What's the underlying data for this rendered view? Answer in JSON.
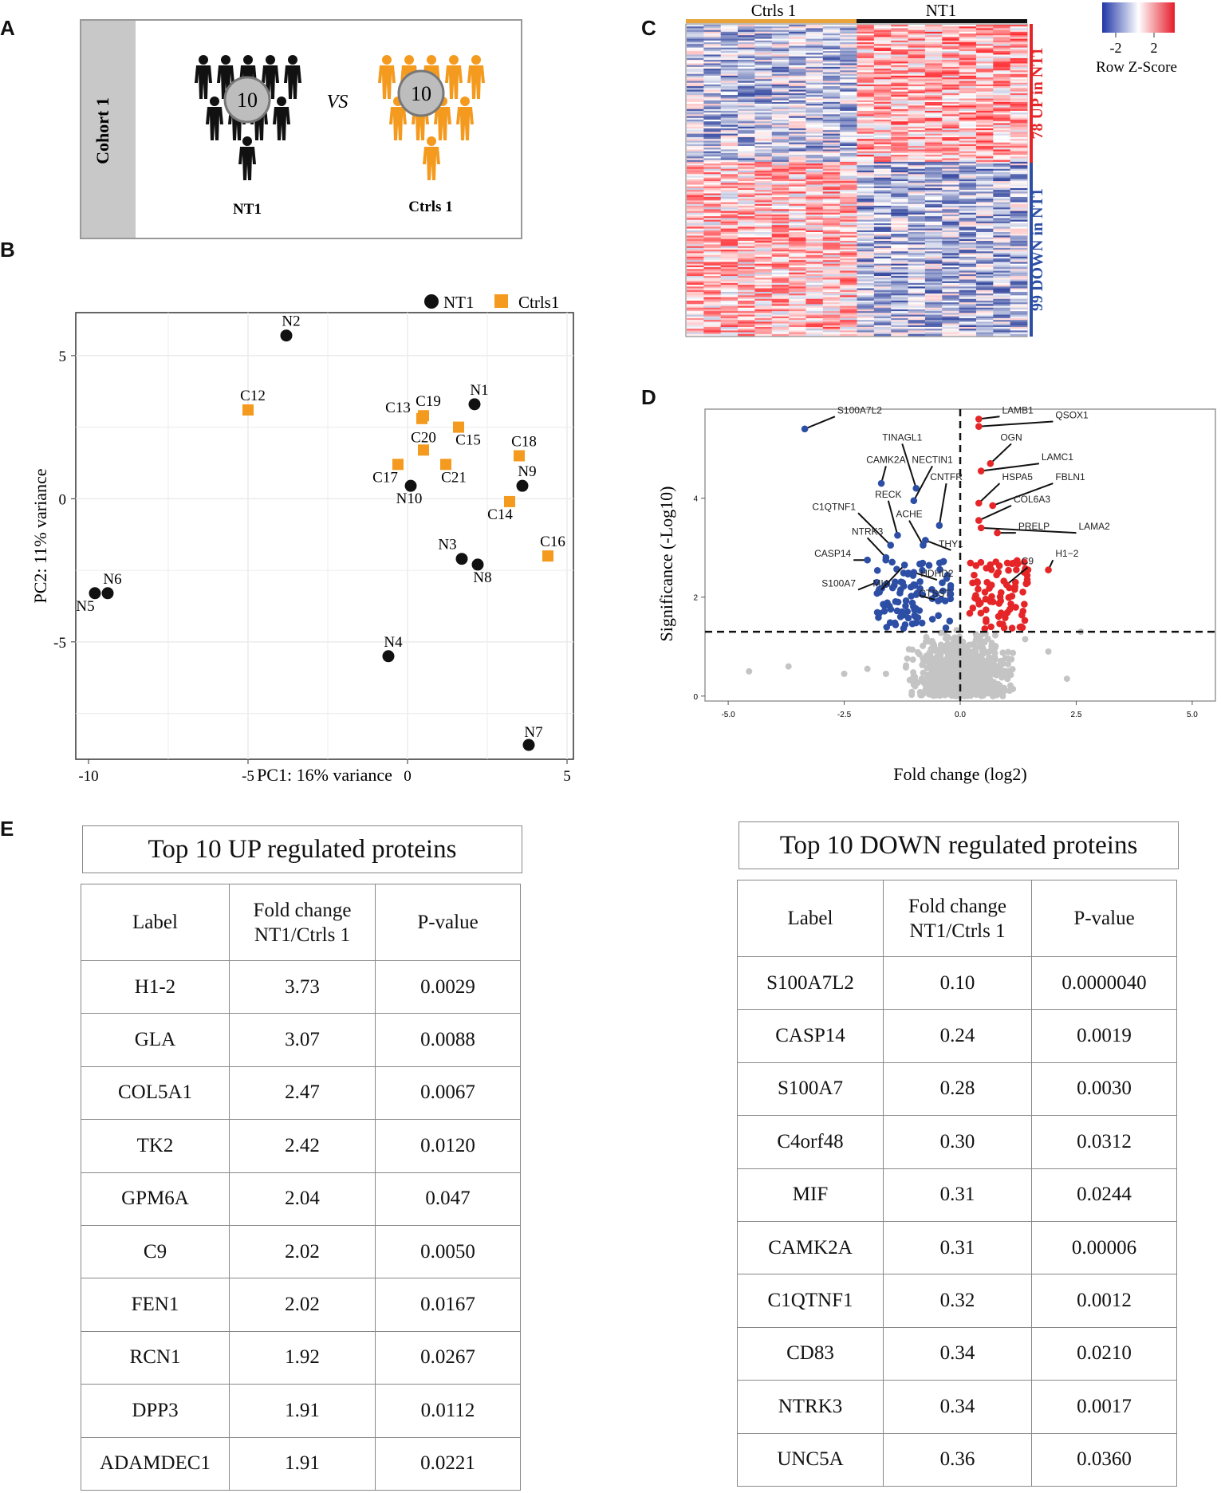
{
  "panels": {
    "a": "A",
    "b": "B",
    "c": "C",
    "d": "D",
    "e": "E"
  },
  "panel_a": {
    "cohort_label": "Cohort 1",
    "group1": {
      "label": "NT1",
      "count": "10",
      "color": "#111111"
    },
    "group2": {
      "label": "Ctrls 1",
      "count": "10",
      "color": "#f49a1e"
    },
    "vs_label": "VS"
  },
  "colors": {
    "nt1": "#111111",
    "ctrl": "#f49a1e",
    "up": "#e52527",
    "down": "#2c4ea5",
    "ns": "#c4c4c4",
    "heat_high": "#e8282e",
    "heat_low": "#2a3e9a"
  },
  "chart_data": [
    {
      "type": "scatter",
      "id": "pca",
      "xlabel": "PC1: 16% variance",
      "ylabel": "PC2: 11% variance",
      "xlim": [
        -10.4,
        5.2
      ],
      "ylim": [
        -9.1,
        6.5
      ],
      "xticks": [
        -10,
        -5,
        0,
        5
      ],
      "yticks": [
        5,
        0,
        -5
      ],
      "legend": [
        {
          "name": "NT1",
          "shape": "circle"
        },
        {
          "name": "Ctrls1",
          "shape": "square"
        }
      ],
      "series": [
        {
          "name": "NT1",
          "shape": "circle",
          "points": [
            {
              "label": "N1",
              "x": 2.1,
              "y": 3.3
            },
            {
              "label": "N2",
              "x": -3.8,
              "y": 5.7
            },
            {
              "label": "N3",
              "x": 1.7,
              "y": -2.1
            },
            {
              "label": "N4",
              "x": -0.6,
              "y": -5.5
            },
            {
              "label": "N5",
              "x": -9.8,
              "y": -3.3
            },
            {
              "label": "N6",
              "x": -9.4,
              "y": -3.3
            },
            {
              "label": "N7",
              "x": 3.8,
              "y": -8.6
            },
            {
              "label": "N8",
              "x": 2.2,
              "y": -2.3
            },
            {
              "label": "N9",
              "x": 3.6,
              "y": 0.45
            },
            {
              "label": "N10",
              "x": 0.1,
              "y": 0.45
            }
          ]
        },
        {
          "name": "Ctrls1",
          "shape": "square",
          "points": [
            {
              "label": "C12",
              "x": -5.0,
              "y": 3.1
            },
            {
              "label": "C13",
              "x": 0.45,
              "y": 2.8
            },
            {
              "label": "C14",
              "x": 3.2,
              "y": -0.1
            },
            {
              "label": "C15",
              "x": 1.6,
              "y": 2.5
            },
            {
              "label": "C16",
              "x": 4.4,
              "y": -2.0
            },
            {
              "label": "C17",
              "x": -0.3,
              "y": 1.2
            },
            {
              "label": "C18",
              "x": 3.5,
              "y": 1.5
            },
            {
              "label": "C19",
              "x": 0.5,
              "y": 2.9
            },
            {
              "label": "C20",
              "x": 0.5,
              "y": 1.7
            },
            {
              "label": "C21",
              "x": 1.2,
              "y": 1.2
            }
          ]
        }
      ]
    },
    {
      "type": "heatmap",
      "id": "heatmap",
      "column_groups": [
        {
          "name": "Ctrls 1",
          "count": 10
        },
        {
          "name": "NT1",
          "count": 10
        }
      ],
      "row_groups": [
        {
          "name": "78 UP in NT1",
          "count": 78
        },
        {
          "name": "99 DOWN in NT1",
          "count": 99
        }
      ],
      "legend": {
        "title": "Row Z-Score",
        "ticks": [
          "-2",
          "2"
        ]
      }
    },
    {
      "type": "scatter",
      "id": "volcano",
      "xlabel": "Fold change (log2)",
      "ylabel": "Significance (-Log10)",
      "xlim": [
        -5.5,
        5.5
      ],
      "ylim": [
        -0.1,
        5.8
      ],
      "xticks": [
        "-5.0",
        "-2.5",
        "0.0",
        "2.5",
        "5.0"
      ],
      "yticks": [
        "0",
        "2",
        "4"
      ],
      "threshold_x": 0,
      "threshold_y": 1.3,
      "labeled_points": [
        {
          "label": "S100A7L2",
          "x": -3.35,
          "y": 5.4,
          "group": "down"
        },
        {
          "label": "LAMB1",
          "x": 0.4,
          "y": 5.6,
          "group": "up"
        },
        {
          "label": "QSOX1",
          "x": 0.4,
          "y": 5.45,
          "group": "up"
        },
        {
          "label": "TINAGL1",
          "x": -0.95,
          "y": 4.2,
          "group": "down"
        },
        {
          "label": "OGN",
          "x": 0.65,
          "y": 4.7,
          "group": "up"
        },
        {
          "label": "CAMK2A",
          "x": -1.7,
          "y": 4.3,
          "group": "down"
        },
        {
          "label": "NECTIN1",
          "x": -1.0,
          "y": 3.95,
          "group": "down"
        },
        {
          "label": "LAMC1",
          "x": 0.45,
          "y": 4.55,
          "group": "up"
        },
        {
          "label": "CNTFR",
          "x": -0.45,
          "y": 3.45,
          "group": "down"
        },
        {
          "label": "HSPA5",
          "x": 0.4,
          "y": 3.9,
          "group": "up"
        },
        {
          "label": "FBLN1",
          "x": 0.7,
          "y": 3.85,
          "group": "up"
        },
        {
          "label": "RECK",
          "x": -1.35,
          "y": 3.25,
          "group": "down"
        },
        {
          "label": "COL6A3",
          "x": 0.4,
          "y": 3.55,
          "group": "up"
        },
        {
          "label": "C1QTNF1",
          "x": -1.5,
          "y": 3.05,
          "group": "down"
        },
        {
          "label": "ACHE",
          "x": -0.8,
          "y": 3.05,
          "group": "down"
        },
        {
          "label": "NTRK3",
          "x": -1.6,
          "y": 2.8,
          "group": "down"
        },
        {
          "label": "PRELP",
          "x": 0.8,
          "y": 3.3,
          "group": "up"
        },
        {
          "label": "LAMA2",
          "x": 0.45,
          "y": 3.4,
          "group": "up"
        },
        {
          "label": "THY1",
          "x": -0.75,
          "y": 3.15,
          "group": "down"
        },
        {
          "label": "CASP14",
          "x": -2.0,
          "y": 2.75,
          "group": "down"
        },
        {
          "label": "H1−2",
          "x": 1.9,
          "y": 2.55,
          "group": "up"
        },
        {
          "label": "C9",
          "x": 1.0,
          "y": 2.25,
          "group": "up"
        },
        {
          "label": "HDHD2",
          "x": -1.0,
          "y": 2.5,
          "group": "down"
        },
        {
          "label": "S100A7",
          "x": -1.8,
          "y": 2.3,
          "group": "down"
        },
        {
          "label": "MIA",
          "x": -1.2,
          "y": 2.65,
          "group": "down"
        },
        {
          "label": "CTSST",
          "x": -0.95,
          "y": 2.05,
          "group": "down"
        }
      ]
    }
  ],
  "table_up": {
    "title": "Top 10 UP regulated proteins",
    "headers": {
      "label": "Label",
      "fc1": "Fold change",
      "fc2": "NT1/Ctrls 1",
      "p": "P-value"
    },
    "rows": [
      {
        "label": "H1-2",
        "fc": "3.73",
        "p": "0.0029"
      },
      {
        "label": "GLA",
        "fc": "3.07",
        "p": "0.0088"
      },
      {
        "label": "COL5A1",
        "fc": "2.47",
        "p": "0.0067"
      },
      {
        "label": "TK2",
        "fc": "2.42",
        "p": "0.0120"
      },
      {
        "label": "GPM6A",
        "fc": "2.04",
        "p": "0.047"
      },
      {
        "label": "C9",
        "fc": "2.02",
        "p": "0.0050"
      },
      {
        "label": "FEN1",
        "fc": "2.02",
        "p": "0.0167"
      },
      {
        "label": "RCN1",
        "fc": "1.92",
        "p": "0.0267"
      },
      {
        "label": "DPP3",
        "fc": "1.91",
        "p": "0.0112"
      },
      {
        "label": "ADAMDEC1",
        "fc": "1.91",
        "p": "0.0221"
      }
    ]
  },
  "table_down": {
    "title": "Top 10 DOWN regulated proteins",
    "headers": {
      "label": "Label",
      "fc1": "Fold change",
      "fc2": "NT1/Ctrls 1",
      "p": "P-value"
    },
    "rows": [
      {
        "label": "S100A7L2",
        "fc": "0.10",
        "p": "0.0000040"
      },
      {
        "label": "CASP14",
        "fc": "0.24",
        "p": "0.0019"
      },
      {
        "label": "S100A7",
        "fc": "0.28",
        "p": "0.0030"
      },
      {
        "label": "C4orf48",
        "fc": "0.30",
        "p": "0.0312"
      },
      {
        "label": "MIF",
        "fc": "0.31",
        "p": "0.0244"
      },
      {
        "label": "CAMK2A",
        "fc": "0.31",
        "p": "0.00006"
      },
      {
        "label": "C1QTNF1",
        "fc": "0.32",
        "p": "0.0012"
      },
      {
        "label": "CD83",
        "fc": "0.34",
        "p": "0.0210"
      },
      {
        "label": "NTRK3",
        "fc": "0.34",
        "p": "0.0017"
      },
      {
        "label": "UNC5A",
        "fc": "0.36",
        "p": "0.0360"
      }
    ]
  }
}
